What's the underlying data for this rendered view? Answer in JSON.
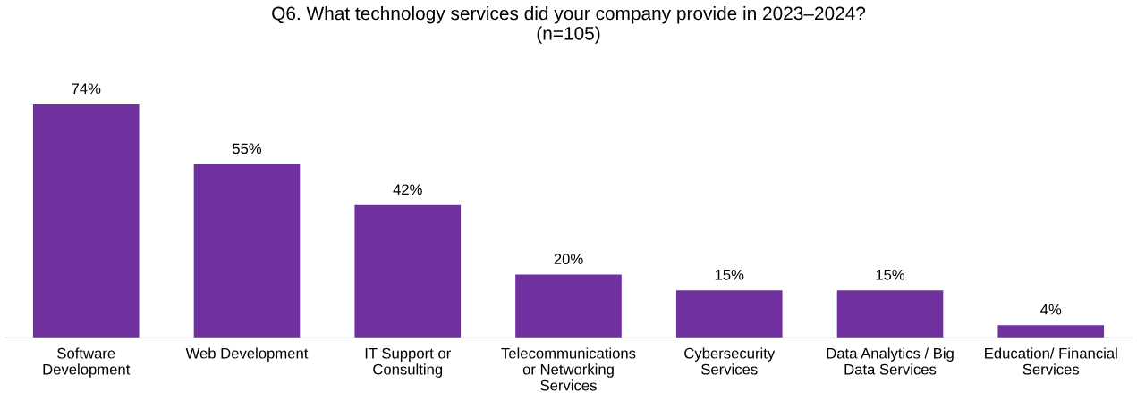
{
  "chart_data": {
    "type": "bar",
    "title": "Q6. What technology services did your company provide in 2023–2024?\n(n=105)",
    "categories": [
      "Software\nDevelopment",
      "Web Development",
      "IT Support or\nConsulting",
      "Telecommunications\nor Networking\nServices",
      "Cybersecurity\nServices",
      "Data Analytics / Big\nData Services",
      "Education/ Financial\nServices"
    ],
    "values": [
      74,
      55,
      42,
      20,
      15,
      15,
      4
    ],
    "value_labels": [
      "74%",
      "55%",
      "42%",
      "20%",
      "15%",
      "15%",
      "4%"
    ],
    "color": "#7030a0",
    "grid": false,
    "legend": false
  }
}
